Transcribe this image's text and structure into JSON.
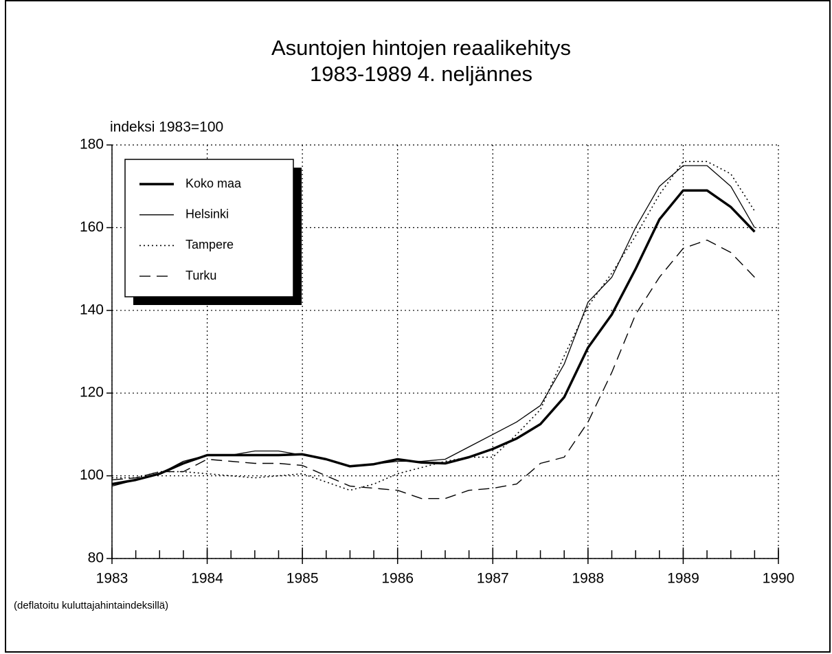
{
  "chart_data": {
    "type": "line",
    "title": [
      "Asuntojen hintojen reaalikehitys",
      "1983-1989 4. neljännes"
    ],
    "y_label": "indeksi 1983=100",
    "note": "(deflatoitu kuluttajahintaindeksillä)",
    "x": [
      1983,
      1983.25,
      1983.5,
      1983.75,
      1984,
      1984.25,
      1984.5,
      1984.75,
      1985,
      1985.25,
      1985.5,
      1985.75,
      1986,
      1986.25,
      1986.5,
      1986.75,
      1987,
      1987.25,
      1987.5,
      1987.75,
      1988,
      1988.25,
      1988.5,
      1988.75,
      1989,
      1989.25,
      1989.5,
      1989.75
    ],
    "series": [
      {
        "name": "Koko maa",
        "color": "#000000",
        "values": [
          98,
          99,
          100.5,
          103,
          105,
          105,
          105,
          105,
          105.2,
          104,
          102.3,
          102.8,
          104,
          103.2,
          103,
          104.5,
          106.5,
          109,
          112.5,
          119,
          131,
          139,
          150,
          162,
          169,
          169,
          165,
          159
        ]
      },
      {
        "name": "Helsinki",
        "color": "#000000",
        "values": [
          97.5,
          99,
          100.5,
          103.5,
          105,
          105,
          106,
          106,
          105,
          104,
          102.3,
          102.8,
          103.5,
          103.5,
          104,
          107,
          110,
          113,
          117,
          127,
          142,
          148,
          160,
          170,
          175,
          175,
          170,
          160
        ]
      },
      {
        "name": "Tampere",
        "color": "#000000",
        "values": [
          99.5,
          99.5,
          101,
          101,
          100.5,
          100,
          99.5,
          100,
          100.5,
          98.5,
          96.5,
          98,
          100.5,
          102,
          103.5,
          104.5,
          104.5,
          110,
          116,
          129,
          141,
          149,
          158,
          168,
          176,
          176,
          173,
          164
        ]
      },
      {
        "name": "Turku",
        "color": "#000000",
        "values": [
          99,
          99.5,
          101,
          101,
          104,
          103.5,
          103,
          103,
          102.5,
          100,
          97.5,
          97,
          96.5,
          94.5,
          94.5,
          96.5,
          97,
          98,
          103,
          104.5,
          113,
          125,
          139,
          148,
          155,
          157,
          154,
          148
        ]
      }
    ],
    "xlim": [
      1983,
      1990
    ],
    "xticks": [
      1983,
      1984,
      1985,
      1986,
      1987,
      1988,
      1989,
      1990
    ],
    "ylim": [
      80,
      180
    ],
    "yticks": [
      80,
      100,
      120,
      140,
      160,
      180
    ],
    "grid": true,
    "legend": "upper left"
  }
}
